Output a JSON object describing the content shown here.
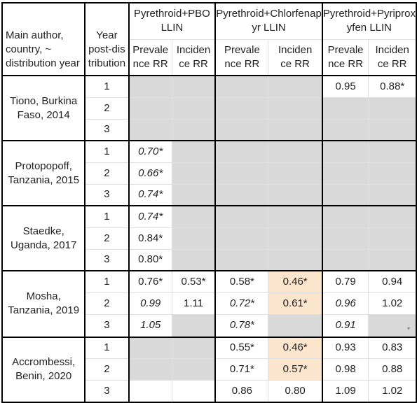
{
  "table": {
    "header": {
      "author_label": "Main author, country, ~ distribution year",
      "year_label": "Year post-distribution",
      "groups": [
        "Pyrethroid+PBO LLIN",
        "Pyrethroid+Chlorfenapyr LLIN",
        "Pyrethroid+Pyriproxyfen LLIN"
      ],
      "sub_prevalence": "Prevalence RR",
      "sub_incidence": "Incidence RR"
    },
    "studies": [
      {
        "author": "Tiono, Burkina Faso, 2014",
        "rows": [
          {
            "year": "1",
            "pbo_prev": "",
            "pbo_inc": "",
            "cfp_prev": "",
            "cfp_inc": "",
            "ppf_prev": "0.95",
            "ppf_inc": "0.88*"
          },
          {
            "year": "2",
            "pbo_prev": "",
            "pbo_inc": "",
            "cfp_prev": "",
            "cfp_inc": "",
            "ppf_prev": "",
            "ppf_inc": ""
          },
          {
            "year": "3",
            "pbo_prev": "",
            "pbo_inc": "",
            "cfp_prev": "",
            "cfp_inc": "",
            "ppf_prev": "",
            "ppf_inc": ""
          }
        ]
      },
      {
        "author": "Protopopoff, Tanzania, 2015",
        "rows": [
          {
            "year": "1",
            "pbo_prev": "0.70*",
            "pbo_inc": "",
            "cfp_prev": "",
            "cfp_inc": "",
            "ppf_prev": "",
            "ppf_inc": ""
          },
          {
            "year": "2",
            "pbo_prev": "0.66*",
            "pbo_inc": "",
            "cfp_prev": "",
            "cfp_inc": "",
            "ppf_prev": "",
            "ppf_inc": ""
          },
          {
            "year": "3",
            "pbo_prev": "0.74*",
            "pbo_inc": "",
            "cfp_prev": "",
            "cfp_inc": "",
            "ppf_prev": "",
            "ppf_inc": ""
          }
        ]
      },
      {
        "author": "Staedke, Uganda, 2017",
        "rows": [
          {
            "year": "1",
            "pbo_prev": "0.74*",
            "pbo_inc": "",
            "cfp_prev": "",
            "cfp_inc": "",
            "ppf_prev": "",
            "ppf_inc": ""
          },
          {
            "year": "2",
            "pbo_prev": "0.84*",
            "pbo_inc": "",
            "cfp_prev": "",
            "cfp_inc": "",
            "ppf_prev": "",
            "ppf_inc": ""
          },
          {
            "year": "3",
            "pbo_prev": "0.80*",
            "pbo_inc": "",
            "cfp_prev": "",
            "cfp_inc": "",
            "ppf_prev": "",
            "ppf_inc": ""
          }
        ]
      },
      {
        "author": "Mosha, Tanzania, 2019",
        "rows": [
          {
            "year": "1",
            "pbo_prev": "0.76*",
            "pbo_inc": "0.53*",
            "cfp_prev": "0.58*",
            "cfp_inc": "0.46*",
            "ppf_prev": "0.79",
            "ppf_inc": "0.94"
          },
          {
            "year": "2",
            "pbo_prev": "0.99",
            "pbo_inc": "1.11",
            "cfp_prev": "0.72*",
            "cfp_inc": "0.61*",
            "ppf_prev": "0.96",
            "ppf_inc": "1.02"
          },
          {
            "year": "3",
            "pbo_prev": "1.05",
            "pbo_inc": "",
            "cfp_prev": "0.78*",
            "cfp_inc": "",
            "ppf_prev": "0.91",
            "ppf_inc": ""
          }
        ]
      },
      {
        "author": "Accrombessi, Benin, 2020",
        "rows": [
          {
            "year": "1",
            "pbo_prev": "",
            "pbo_inc": "",
            "cfp_prev": "0.55*",
            "cfp_inc": "0.46*",
            "ppf_prev": "0.93",
            "ppf_inc": "0.83"
          },
          {
            "year": "2",
            "pbo_prev": "",
            "pbo_inc": "",
            "cfp_prev": "0.71*",
            "cfp_inc": "0.57*",
            "ppf_prev": "0.98",
            "ppf_inc": "0.88"
          },
          {
            "year": "3",
            "pbo_prev": "",
            "pbo_inc": "",
            "cfp_prev": "0.86",
            "cfp_inc": "0.80",
            "ppf_prev": "1.09",
            "ppf_inc": "1.02"
          }
        ]
      }
    ]
  },
  "colors": {
    "grey_fill": "#d9d9d9",
    "highlight_fill": "#fce5cd",
    "text": "#222222",
    "thick_border": "#000000",
    "thin_border": "#e0e0e0"
  }
}
